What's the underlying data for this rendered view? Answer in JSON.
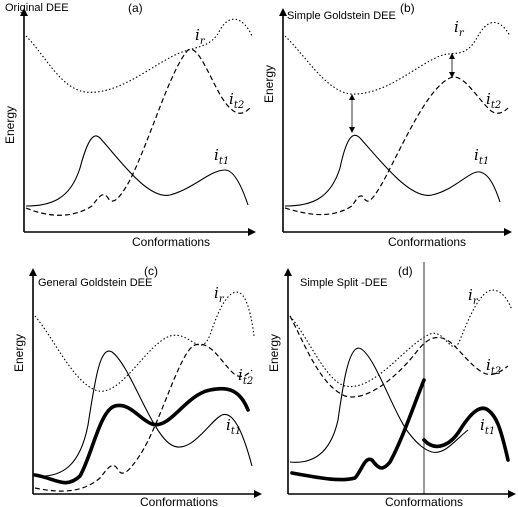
{
  "figure": {
    "axis_labels": {
      "x": "Conformations",
      "y": "Energy"
    },
    "curve_labels": {
      "ir": "r",
      "it1": "t1",
      "it2": "t2",
      "i": "i"
    },
    "panels": [
      {
        "id": "a",
        "title": "Original DEE",
        "letter": "(a)"
      },
      {
        "id": "b",
        "title": "Simple Goldstein DEE",
        "letter": "(b)"
      },
      {
        "id": "c",
        "title": "General Goldstein DEE",
        "letter": "(c)"
      },
      {
        "id": "d",
        "title": "Simple Split -DEE",
        "letter": "(d)"
      }
    ]
  }
}
